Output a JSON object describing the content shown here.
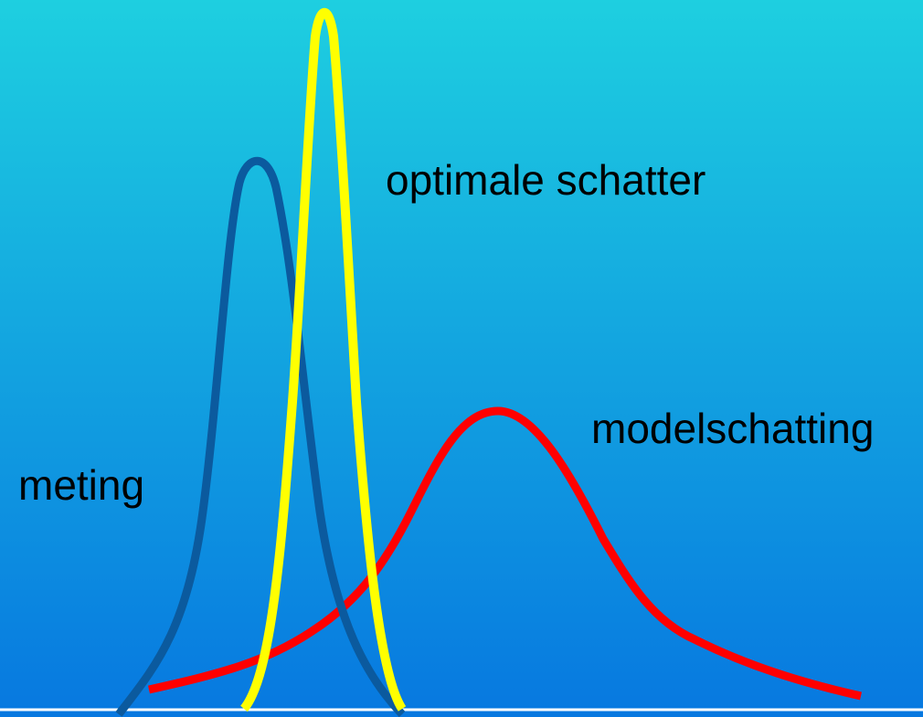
{
  "labels": {
    "optimal": "optimale schatter",
    "model": "modelschatting",
    "measurement": "meting"
  },
  "colors": {
    "background_top": "#1ECFE0",
    "background_bottom": "#0778E0",
    "measurement_curve": "#0B5A9E",
    "model_curve": "#FF0000",
    "optimal_curve": "#FFFF00",
    "baseline": "#FFFFFF"
  }
}
